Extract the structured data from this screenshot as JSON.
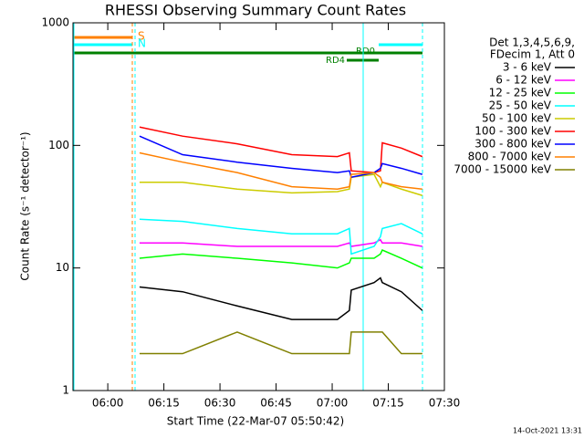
{
  "chart_data": {
    "type": "line",
    "title": "RHESSI Observing Summary Count Rates",
    "x_label": "Start Time (22-Mar-07 05:50:42)",
    "y_label": "Count Rate (s⁻¹ detector⁻¹)",
    "legend_header": [
      "Det 1,3,4,5,6,9,",
      "FDecim 1, Att 0"
    ],
    "legend_position": "right",
    "log_y": true,
    "footer": "14-Oct-2021 13:31",
    "flags": {
      "s": "S",
      "n": "N",
      "rd0": "RD0",
      "rd4": "RD4"
    },
    "xlim": [
      350.7,
      450
    ],
    "xticks": [
      {
        "value": 360,
        "label": "06:00"
      },
      {
        "value": 375,
        "label": "06:15"
      },
      {
        "value": 390,
        "label": "06:30"
      },
      {
        "value": 405,
        "label": "06:45"
      },
      {
        "value": 420,
        "label": "07:00"
      },
      {
        "value": 435,
        "label": "07:15"
      },
      {
        "value": 450,
        "label": "07:30"
      }
    ],
    "ylim": [
      1,
      1000
    ],
    "yticks": [
      1,
      10,
      100,
      1000
    ],
    "x": [
      368.5,
      380,
      394.6,
      409.2,
      421.4,
      424.6,
      425.1,
      431.2,
      432.9,
      433.4,
      438.5,
      444.1
    ],
    "series": [
      {
        "name": "3 - 6 keV",
        "color": "#000000",
        "values": [
          7,
          6.4,
          4.9,
          3.8,
          3.8,
          4.5,
          6.6,
          7.6,
          8.3,
          7.6,
          6.4,
          4.5
        ]
      },
      {
        "name": "6 - 12 keV",
        "color": "#ff00ff",
        "values": [
          16,
          16,
          15,
          15,
          15,
          16,
          15,
          16,
          17,
          16,
          16,
          15
        ]
      },
      {
        "name": "12 - 25 keV",
        "color": "#00ff00",
        "values": [
          12,
          13,
          12,
          11,
          10,
          11,
          12,
          12,
          13,
          14,
          12,
          10
        ]
      },
      {
        "name": "25 - 50 keV",
        "color": "#00ffff",
        "values": [
          25,
          24,
          21,
          19,
          19,
          21,
          13,
          15,
          18,
          21,
          23,
          19
        ]
      },
      {
        "name": "50 - 100 keV",
        "color": "#cccc00",
        "values": [
          50,
          50,
          44,
          41,
          42,
          44,
          55,
          58,
          46,
          50,
          44,
          39
        ]
      },
      {
        "name": "100 - 300 keV",
        "color": "#ff0000",
        "values": [
          141,
          119,
          103,
          84,
          81,
          87,
          62,
          60,
          62,
          105,
          95,
          81
        ]
      },
      {
        "name": "300 - 800 keV",
        "color": "#0000ff",
        "values": [
          119,
          84,
          73,
          65,
          60,
          62,
          55,
          60,
          65,
          71,
          65,
          58
        ]
      },
      {
        "name": "800 - 7000 keV",
        "color": "#ff8000",
        "values": [
          87,
          73,
          60,
          46,
          44,
          46,
          58,
          60,
          55,
          50,
          46,
          44
        ]
      },
      {
        "name": "7000 - 15000 keV",
        "color": "#808000",
        "values": [
          2,
          2,
          3,
          2,
          2,
          2,
          3,
          3,
          3,
          3,
          2,
          2
        ]
      }
    ]
  }
}
